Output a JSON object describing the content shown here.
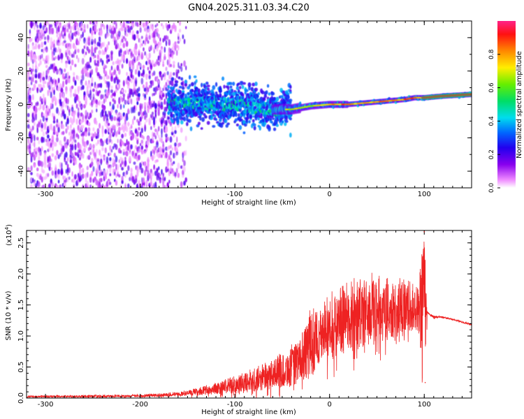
{
  "title": "GN04.2025.311.03.34.C20",
  "colors": {
    "snr_line": "#ee2222",
    "colorbar": [
      "#ff2288",
      "#ff1111",
      "#ff8800",
      "#ffee00",
      "#66ee00",
      "#00dd66",
      "#00ddee",
      "#0066ff",
      "#2200ee",
      "#8800ee",
      "#ffffff"
    ]
  },
  "chart_data": [
    {
      "type": "heatmap",
      "name": "spectrogram",
      "xlabel": "Height of straight line (km)",
      "ylabel": "Frequency (Hz)",
      "xlim": [
        -320,
        150
      ],
      "ylim": [
        -50,
        50
      ],
      "xticks": [
        -300,
        -200,
        -100,
        0,
        100
      ],
      "xtick_labels": [
        "-300",
        "-200",
        "-100",
        "0",
        "100"
      ],
      "yticks": [
        -40,
        -20,
        0,
        20,
        40
      ],
      "ytick_labels": [
        "-40",
        "-20",
        "0",
        "20",
        "40"
      ],
      "colorbar": {
        "label": "Normalized spectral amplitude",
        "range": [
          0,
          1
        ],
        "ticks": [
          0.0,
          0.2,
          0.4,
          0.6,
          0.8
        ],
        "tick_labels": [
          "0.0",
          "0.2",
          "0.4",
          "0.6",
          "0.8"
        ]
      },
      "ridge": {
        "description": "dominant frequency trace",
        "x": [
          -160,
          -140,
          -120,
          -100,
          -80,
          -60,
          -40,
          -20,
          0,
          20,
          40,
          60,
          80,
          90,
          100,
          120,
          150
        ],
        "freq": [
          1,
          1,
          0,
          0,
          -2,
          -3,
          -3,
          -1,
          0,
          0,
          1,
          2,
          3,
          4,
          4,
          5,
          6
        ]
      },
      "noise_region": {
        "x": [
          -320,
          -160
        ],
        "freq": [
          -50,
          50
        ]
      }
    },
    {
      "type": "line",
      "name": "snr",
      "xlabel": "Height of straight line (km)",
      "ylabel": "SNR (10 * v/v)",
      "multiplier_label": "(x10",
      "multiplier_exp": "4",
      "xlim": [
        -320,
        150
      ],
      "ylim": [
        0,
        2.7
      ],
      "xticks": [
        -300,
        -200,
        -100,
        0,
        100
      ],
      "xtick_labels": [
        "-300",
        "-200",
        "-100",
        "0",
        "100"
      ],
      "yticks": [
        0.0,
        0.5,
        1.0,
        1.5,
        2.0,
        2.5
      ],
      "ytick_labels": [
        "0.0",
        "0.5",
        "1.0",
        "1.5",
        "2.0",
        "2.5"
      ],
      "envelope": {
        "x": [
          -320,
          -250,
          -200,
          -160,
          -140,
          -120,
          -100,
          -80,
          -60,
          -40,
          -30,
          -20,
          -10,
          0,
          20,
          40,
          60,
          80,
          90,
          95,
          100,
          103,
          110,
          120,
          130,
          140,
          150
        ],
        "mean": [
          0.02,
          0.02,
          0.03,
          0.05,
          0.08,
          0.12,
          0.17,
          0.22,
          0.3,
          0.4,
          0.5,
          0.68,
          0.85,
          0.95,
          1.1,
          1.2,
          1.25,
          1.3,
          1.28,
          1.2,
          0.9,
          1.38,
          1.3,
          1.3,
          1.26,
          1.22,
          1.18
        ],
        "max": [
          0.04,
          0.05,
          0.06,
          0.1,
          0.16,
          0.26,
          0.38,
          0.48,
          0.65,
          0.88,
          1.0,
          1.52,
          1.45,
          1.7,
          1.9,
          2.05,
          1.95,
          1.95,
          1.85,
          2.0,
          2.68,
          1.4,
          1.33,
          1.32,
          1.28,
          1.24,
          1.2
        ]
      },
      "notable_points": [
        {
          "x": 100,
          "y": 2.68,
          "note": "peak"
        },
        {
          "x": 101,
          "y": 0.25,
          "note": "dip"
        }
      ]
    }
  ]
}
